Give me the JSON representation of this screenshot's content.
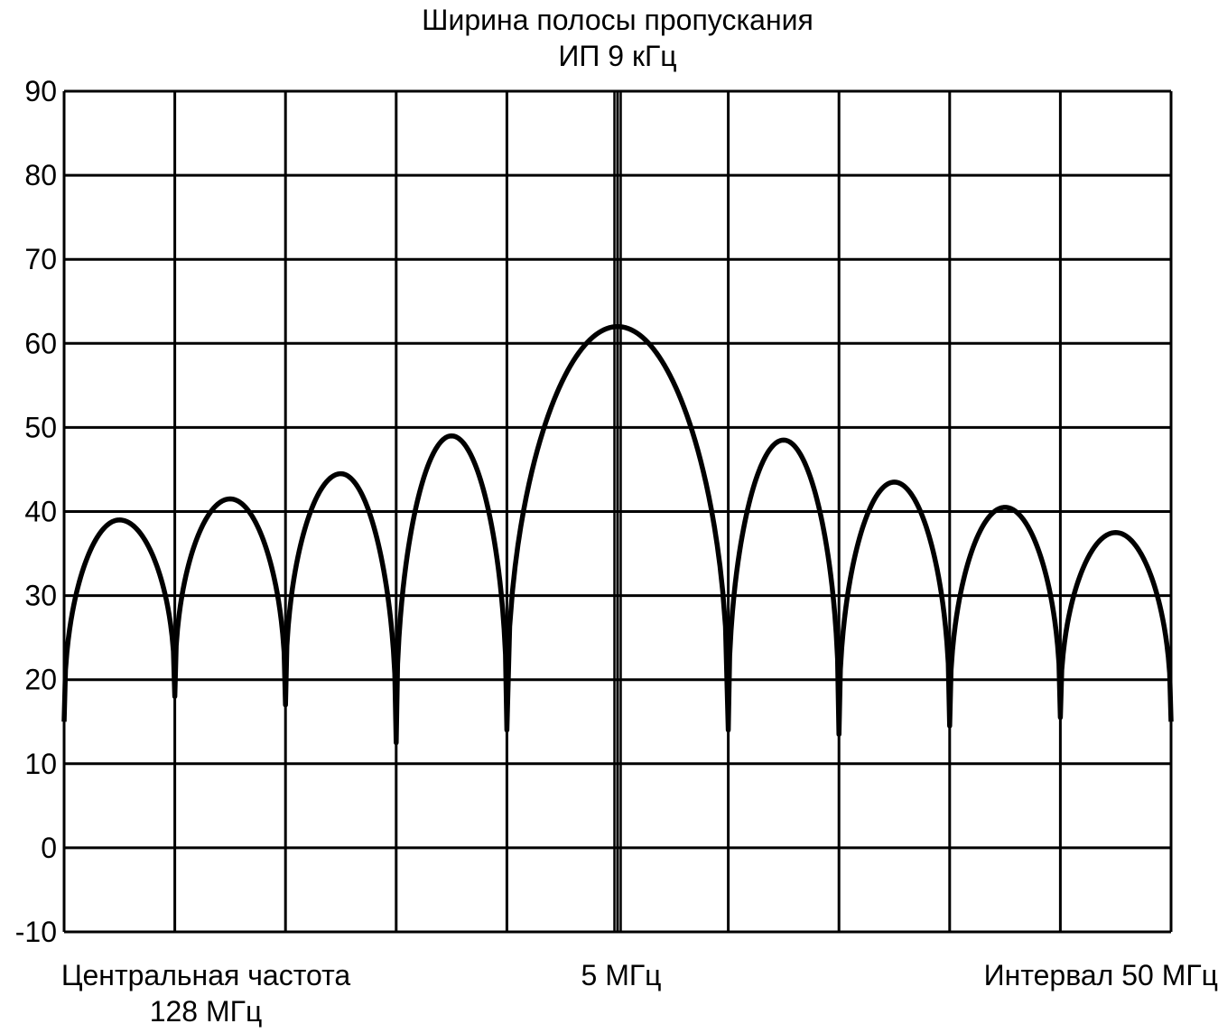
{
  "chart_data": {
    "type": "line",
    "title": "Ширина полосы пропускания",
    "subtitle": "ИП 9 кГц",
    "ylim": [
      -10,
      90
    ],
    "yticks": [
      90,
      80,
      70,
      60,
      50,
      40,
      30,
      20,
      10,
      0,
      -10
    ],
    "grid": true,
    "x_divisions": 10,
    "x_labels": {
      "left": [
        "Центральная частота",
        "128 МГц"
      ],
      "center": "5 МГц",
      "right": "Интервал 50 МГц"
    },
    "series": [
      {
        "color": "#000000",
        "lobes": [
          {
            "x0": 0.0,
            "x1": 1.0,
            "y_start": 15,
            "y_peak": 39,
            "y_end": 18
          },
          {
            "x0": 1.0,
            "x1": 2.0,
            "y_start": 18,
            "y_peak": 41.5,
            "y_end": 17
          },
          {
            "x0": 2.0,
            "x1": 3.0,
            "y_start": 17,
            "y_peak": 44.5,
            "y_end": 12.5
          },
          {
            "x0": 3.0,
            "x1": 4.0,
            "y_start": 12.5,
            "y_peak": 49,
            "y_end": 14
          },
          {
            "x0": 4.0,
            "x1": 6.0,
            "y_start": 14,
            "y_peak": 62,
            "y_end": 14
          },
          {
            "x0": 6.0,
            "x1": 7.0,
            "y_start": 14,
            "y_peak": 48.5,
            "y_end": 13.5
          },
          {
            "x0": 7.0,
            "x1": 8.0,
            "y_start": 13.5,
            "y_peak": 43.5,
            "y_end": 14.5
          },
          {
            "x0": 8.0,
            "x1": 9.0,
            "y_start": 14.5,
            "y_peak": 40.5,
            "y_end": 15.5
          },
          {
            "x0": 9.0,
            "x1": 10.0,
            "y_start": 15.5,
            "y_peak": 37.5,
            "y_end": 15
          }
        ]
      }
    ]
  }
}
